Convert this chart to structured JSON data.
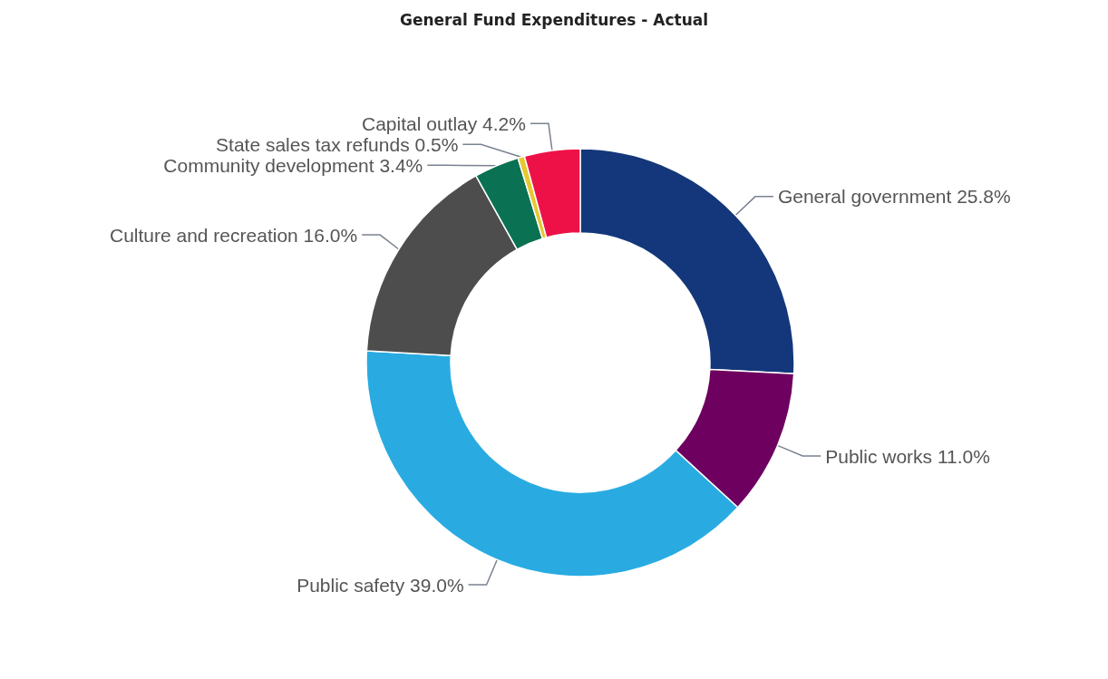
{
  "chart_data": {
    "type": "donut",
    "title": "General Fund Expenditures - Actual",
    "categories": [
      "General government",
      "Public works",
      "Public safety",
      "Culture and recreation",
      "Community development",
      "State sales tax refunds",
      "Capital outlay"
    ],
    "values": [
      25.8,
      11.0,
      39.0,
      16.0,
      3.4,
      0.5,
      4.2
    ],
    "value_labels": [
      "25.8%",
      "11.0%",
      "39.0%",
      "16.0%",
      "3.4%",
      "0.5%",
      "4.2%"
    ],
    "colors": [
      "#13377a",
      "#6e0060",
      "#29abe2",
      "#4d4d4d",
      "#0a7153",
      "#e6c830",
      "#ee1148"
    ],
    "legend": false
  }
}
